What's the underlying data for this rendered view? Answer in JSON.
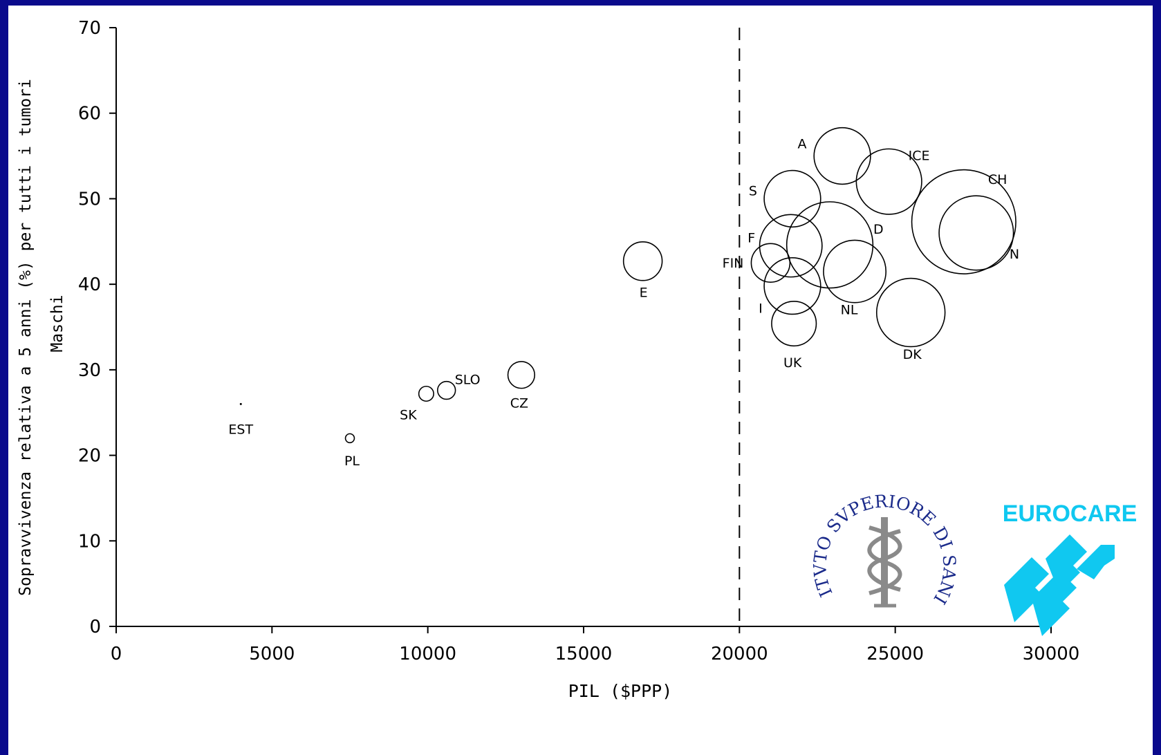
{
  "chart_data": {
    "type": "scatter",
    "title": "",
    "xlabel": "PIL ($PPP)",
    "ylabel": "Sopravvivenza relativa a 5 anni (%) per tutti i tumori",
    "ylabel2": "Maschi",
    "xlim": [
      0,
      30000
    ],
    "ylim": [
      0,
      70
    ],
    "x_ticks": [
      0,
      5000,
      10000,
      15000,
      20000,
      25000,
      30000
    ],
    "y_ticks": [
      0,
      10,
      20,
      30,
      40,
      50,
      60,
      70
    ],
    "reference_line_x": 20000,
    "bubble_size_units": "relative (proportional to drawn radius)",
    "points": [
      {
        "label": "EST",
        "x": 4000,
        "y": 26.0,
        "size": 0.5
      },
      {
        "label": "PL",
        "x": 7500,
        "y": 22.0,
        "size": 3
      },
      {
        "label": "SK",
        "x": 9950,
        "y": 27.2,
        "size": 5
      },
      {
        "label": "SLO",
        "x": 10600,
        "y": 27.6,
        "size": 6
      },
      {
        "label": "CZ",
        "x": 13000,
        "y": 29.4,
        "size": 9
      },
      {
        "label": "E",
        "x": 16900,
        "y": 42.7,
        "size": 13
      },
      {
        "label": "A",
        "x": 23300,
        "y": 55.0,
        "size": 19
      },
      {
        "label": "ICE",
        "x": 24800,
        "y": 52.0,
        "size": 22
      },
      {
        "label": "CH",
        "x": 27200,
        "y": 47.3,
        "size": 35
      },
      {
        "label": "N",
        "x": 27600,
        "y": 46.0,
        "size": 25
      },
      {
        "label": "S",
        "x": 21700,
        "y": 50.0,
        "size": 19
      },
      {
        "label": "F",
        "x": 21650,
        "y": 44.5,
        "size": 21
      },
      {
        "label": "D",
        "x": 22900,
        "y": 44.6,
        "size": 29
      },
      {
        "label": "FIN",
        "x": 21000,
        "y": 42.5,
        "size": 13
      },
      {
        "label": "NL",
        "x": 23700,
        "y": 41.5,
        "size": 21
      },
      {
        "label": "I",
        "x": 21700,
        "y": 39.8,
        "size": 19
      },
      {
        "label": "UK",
        "x": 21750,
        "y": 35.4,
        "size": 15
      },
      {
        "label": "DK",
        "x": 25500,
        "y": 36.7,
        "size": 23
      }
    ]
  },
  "logos": {
    "iss_text": "ISTITVTO SVPERIORE DI SANITA",
    "iss_color": "#1a2a8a",
    "eurocare_text": "EUROCARE",
    "eurocare_color": "#10c8f0"
  }
}
